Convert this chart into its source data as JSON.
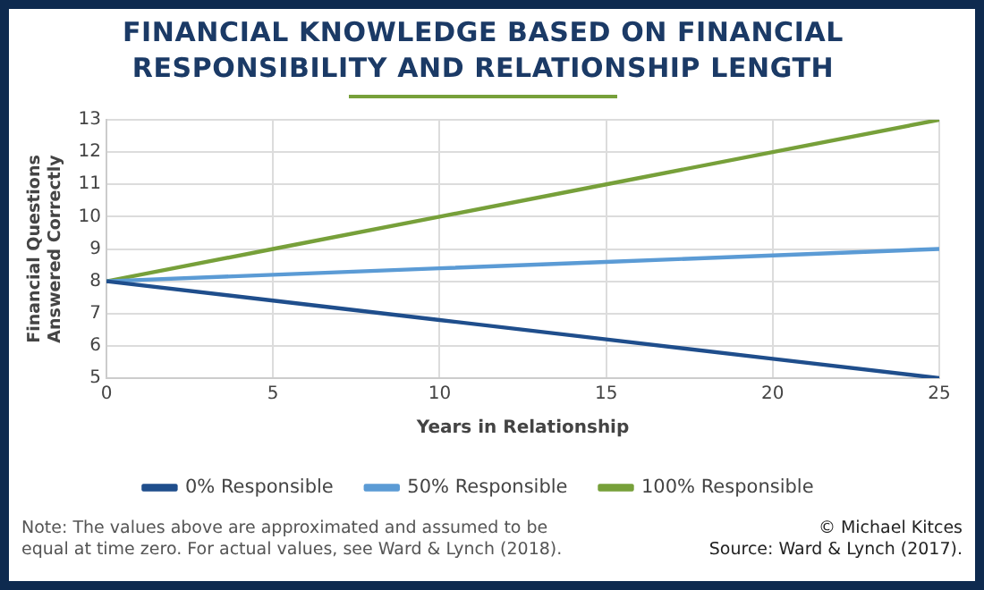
{
  "chart_data": {
    "type": "line",
    "title": "FINANCIAL KNOWLEDGE BASED ON FINANCIAL RESPONSIBILITY AND RELATIONSHIP LENGTH",
    "xlabel": "Years in Relationship",
    "ylabel": "Financial Questions Answered Correctly",
    "x": [
      0,
      5,
      10,
      15,
      20,
      25
    ],
    "series": [
      {
        "name": "0% Responsible",
        "color": "#1f4e8c",
        "values": [
          8,
          7.4,
          6.8,
          6.2,
          5.6,
          5
        ]
      },
      {
        "name": "50% Responsible",
        "color": "#5b9bd5",
        "values": [
          8,
          8.2,
          8.4,
          8.6,
          8.8,
          9
        ]
      },
      {
        "name": "100% Responsible",
        "color": "#77a03a",
        "values": [
          8,
          9,
          10,
          11,
          12,
          13
        ]
      }
    ],
    "xlim": [
      0,
      25
    ],
    "xticks": [
      0,
      5,
      10,
      15,
      20,
      25
    ],
    "ylim": [
      5,
      13
    ],
    "yticks": [
      5,
      6,
      7,
      8,
      9,
      10,
      11,
      12,
      13
    ],
    "grid": true,
    "legend": "bottom",
    "marker": "none",
    "line_style": "solid",
    "annotations": [
      "Note: The values above are approximated and assumed to be equal at time zero. For actual values, see Ward & Lynch (2018).",
      "© Michael Kitces",
      "Source: Ward & Lynch (2017)."
    ]
  }
}
